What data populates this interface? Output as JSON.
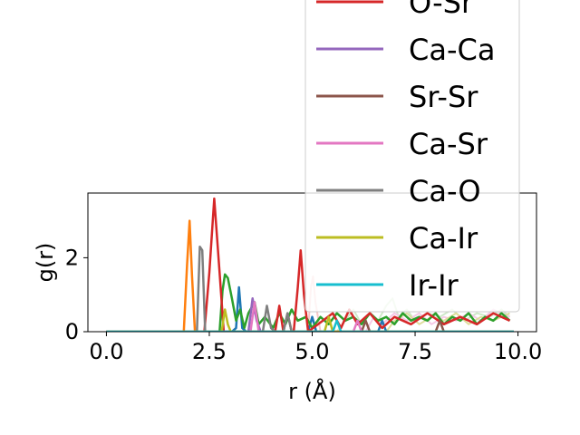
{
  "chart_data": {
    "type": "line",
    "xlabel": "r (Å)",
    "ylabel": "g(r)",
    "xlim": [
      -0.45,
      10.45
    ],
    "ylim": [
      0,
      3.75
    ],
    "xticks": [
      0.0,
      2.5,
      5.0,
      7.5,
      10.0
    ],
    "xtick_labels": [
      "0.0",
      "2.5",
      "5.0",
      "7.5",
      "10.0"
    ],
    "yticks": [
      0,
      2
    ],
    "ytick_labels": [
      "0",
      "2"
    ],
    "legend_location": "upper-right, extending above the plot",
    "series": [
      {
        "name": "",
        "color": "#1f77b4",
        "x": [
          0,
          3.05,
          3.15,
          3.22,
          3.3,
          3.4,
          4.9,
          5.0,
          5.1,
          6.6,
          6.7,
          6.8,
          9.9
        ],
        "y": [
          0,
          0,
          0.1,
          1.2,
          0.1,
          0,
          0,
          0.4,
          0,
          0,
          0.3,
          0,
          0
        ]
      },
      {
        "name": "",
        "color": "#ff7f0e",
        "x": [
          0,
          1.88,
          1.96,
          2.02,
          2.08,
          2.15,
          9.9
        ],
        "y": [
          0,
          0,
          1.8,
          3.0,
          1.5,
          0,
          0
        ]
      },
      {
        "name": "",
        "color": "#2ca02c",
        "x": [
          0,
          2.75,
          2.82,
          2.88,
          2.95,
          3.05,
          3.15,
          3.25,
          3.35,
          3.45,
          3.6,
          3.7,
          3.85,
          4.05,
          4.2,
          4.35,
          4.5,
          4.65,
          4.85,
          5.0,
          5.2,
          5.4,
          5.6,
          5.8,
          6.0,
          6.2,
          6.4,
          6.6,
          6.8,
          7.0,
          7.2,
          7.4,
          7.6,
          7.8,
          8.0,
          8.2,
          8.4,
          8.6,
          8.8,
          9.0,
          9.2,
          9.4,
          9.6,
          9.8
        ],
        "y": [
          0,
          0,
          1.1,
          1.55,
          1.45,
          0.9,
          0.3,
          0.6,
          0.1,
          0.5,
          0.8,
          0.2,
          0.4,
          0.1,
          0.5,
          0.2,
          0.6,
          0.3,
          0.4,
          0.1,
          0.4,
          0.2,
          0.5,
          0.3,
          0.4,
          0.2,
          0.5,
          0.3,
          0.4,
          0.2,
          0.5,
          0.3,
          0.4,
          0.3,
          0.5,
          0.2,
          0.4,
          0.3,
          0.5,
          0.2,
          0.4,
          0.3,
          0.5,
          0.3
        ]
      },
      {
        "name": "O-Sr",
        "color": "#d62728",
        "x": [
          0,
          2.38,
          2.5,
          2.62,
          2.75,
          2.85,
          4.1,
          4.2,
          4.3,
          4.55,
          4.65,
          4.72,
          4.8,
          4.9,
          5.5,
          5.7,
          5.9,
          6.1,
          6.4,
          6.7,
          7.0,
          7.4,
          7.8,
          8.2,
          8.6,
          9.0,
          9.4,
          9.8
        ],
        "y": [
          0,
          0,
          1.6,
          3.6,
          1.6,
          0,
          0,
          0.7,
          0,
          0,
          1.2,
          2.2,
          1.0,
          0,
          0.5,
          0.1,
          0.6,
          0.2,
          0.5,
          0.1,
          0.4,
          0.2,
          0.5,
          0.2,
          0.4,
          0.2,
          0.5,
          0.3
        ]
      },
      {
        "name": "Ca-Ca",
        "color": "#9467bd",
        "x": [
          0,
          3.45,
          3.55,
          3.65,
          3.75,
          9.9
        ],
        "y": [
          0,
          0,
          0.9,
          0.3,
          0,
          0
        ]
      },
      {
        "name": "Sr-Sr",
        "color": "#8c564b",
        "x": [
          0,
          4.3,
          4.4,
          4.5,
          6.2,
          6.3,
          6.4,
          8.0,
          8.1,
          8.2,
          9.9
        ],
        "y": [
          0,
          0,
          0.5,
          0,
          0,
          0.3,
          0,
          0,
          0.3,
          0,
          0
        ]
      },
      {
        "name": "Ca-Sr",
        "color": "#e377c2",
        "x": [
          0,
          3.5,
          3.6,
          3.7,
          6.0,
          6.1,
          6.2,
          9.9
        ],
        "y": [
          0,
          0,
          0.8,
          0,
          0,
          0.3,
          0,
          0
        ]
      },
      {
        "name": "Ca-O",
        "color": "#7f7f7f",
        "x": [
          0,
          2.2,
          2.27,
          2.33,
          2.4,
          3.8,
          3.9,
          4.0,
          4.1,
          4.3,
          4.4,
          4.5,
          9.9
        ],
        "y": [
          0,
          0,
          2.3,
          2.2,
          0,
          0,
          0.7,
          0.1,
          0,
          0,
          0.5,
          0,
          0
        ]
      },
      {
        "name": "Ca-Ir",
        "color": "#bcbd22",
        "x": [
          0,
          2.8,
          2.88,
          2.95,
          3.02,
          5.3,
          5.4,
          5.5,
          9.9
        ],
        "y": [
          0,
          0,
          0.6,
          0.2,
          0,
          0,
          0.4,
          0,
          0
        ]
      },
      {
        "name": "Ir-Ir",
        "color": "#17becf",
        "x": [
          0,
          5.5,
          5.6,
          5.7,
          9.9
        ],
        "y": [
          0,
          0,
          0.3,
          0,
          0
        ]
      }
    ],
    "faded_series": [
      {
        "name": "",
        "color": "#f7c6c6",
        "x": [
          0,
          4.9,
          4.97,
          5.02,
          5.08,
          5.2,
          9.9
        ],
        "y": [
          0,
          0,
          1.2,
          1.5,
          0.8,
          0,
          0
        ]
      },
      {
        "name": "",
        "color": "#cfe9c9",
        "x": [
          0,
          5.6,
          5.8,
          6.0,
          6.2,
          6.4,
          6.6,
          6.8,
          6.95,
          7.1,
          7.3,
          7.5,
          7.8,
          8.1,
          8.4,
          8.7,
          9.0,
          9.3,
          9.6,
          9.8
        ],
        "y": [
          0,
          0,
          0.3,
          0.6,
          0.2,
          0.5,
          0.3,
          0.7,
          0.9,
          0.4,
          0.6,
          0.3,
          0.5,
          0.4,
          0.6,
          0.3,
          0.5,
          0.4,
          0.6,
          0.4
        ]
      },
      {
        "name": "",
        "color": "#f5c9e6",
        "x": [
          0,
          6.3,
          6.5,
          6.7,
          7.0,
          7.3,
          7.6,
          7.9,
          8.2,
          8.5,
          8.8,
          9.1,
          9.4,
          9.8
        ],
        "y": [
          0,
          0,
          0.4,
          0.2,
          0.5,
          0.3,
          0.5,
          0.2,
          0.4,
          0.3,
          0.5,
          0.3,
          0.6,
          0.4
        ]
      },
      {
        "name": "",
        "color": "#dddd9c",
        "x": [
          0,
          6.8,
          7.0,
          7.3,
          7.6,
          7.9,
          8.2,
          8.5,
          8.8,
          9.1,
          9.4,
          9.8
        ],
        "y": [
          0,
          0,
          0.3,
          0.5,
          0.2,
          0.4,
          0.3,
          0.5,
          0.2,
          0.4,
          0.3,
          0.5
        ]
      }
    ],
    "legend": [
      {
        "label": "O-Sr",
        "color": "#d62728"
      },
      {
        "label": "Ca-Ca",
        "color": "#9467bd"
      },
      {
        "label": "Sr-Sr",
        "color": "#8c564b"
      },
      {
        "label": "Ca-Sr",
        "color": "#e377c2"
      },
      {
        "label": "Ca-O",
        "color": "#7f7f7f"
      },
      {
        "label": "Ca-Ir",
        "color": "#bcbd22"
      },
      {
        "label": "Ir-Ir",
        "color": "#17becf"
      }
    ]
  }
}
